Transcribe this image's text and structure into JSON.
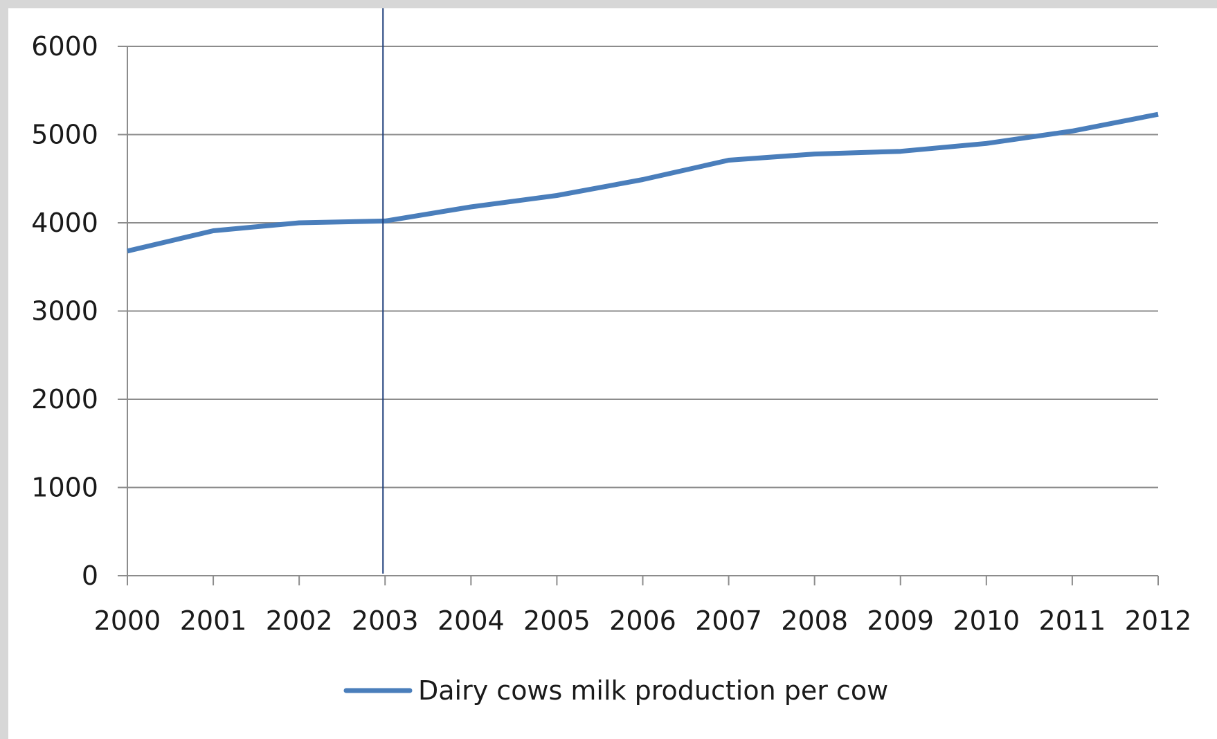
{
  "chart_data": {
    "type": "line",
    "title": "",
    "xlabel": "",
    "ylabel": "",
    "x": [
      "2000",
      "2001",
      "2002",
      "2003",
      "2004",
      "2005",
      "2006",
      "2007",
      "2008",
      "2009",
      "2010",
      "2011",
      "2012"
    ],
    "y_ticks": [
      "0",
      "1000",
      "2000",
      "3000",
      "4000",
      "5000",
      "6000"
    ],
    "ylim": [
      0,
      6000
    ],
    "grid": true,
    "legend_position": "bottom",
    "series": [
      {
        "name": "Dairy cows milk production per cow",
        "color": "#4a7ebb",
        "values": [
          3680,
          3910,
          4000,
          4020,
          4180,
          4310,
          4490,
          4710,
          4780,
          4810,
          4900,
          5040,
          5230
        ]
      }
    ],
    "marker_line": {
      "x": "2003",
      "color": "#1f3f7a"
    }
  }
}
